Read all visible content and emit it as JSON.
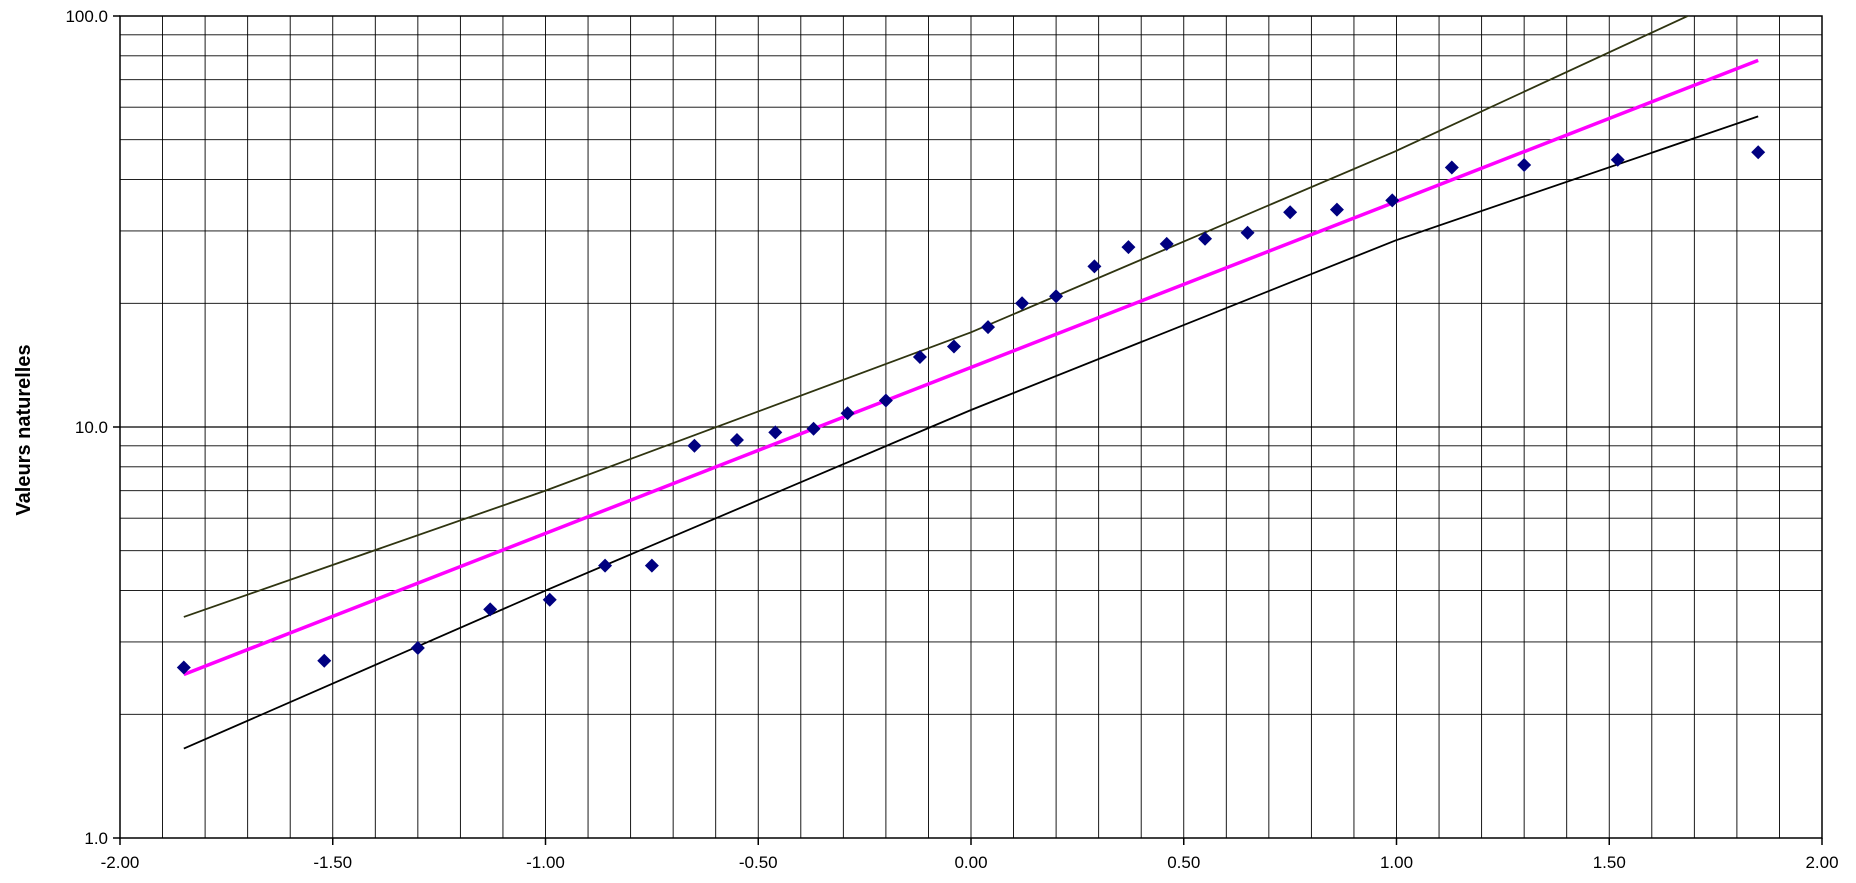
{
  "chart_data": {
    "type": "scatter",
    "title": "",
    "xlabel": "",
    "ylabel": "Valeurs naturelles",
    "xlim": [
      -2.0,
      2.0
    ],
    "ylim": [
      1.0,
      100.0
    ],
    "yscale": "log",
    "grid": true,
    "x_ticks": [
      "-2.00",
      "-1.50",
      "-1.00",
      "-0.50",
      "0.00",
      "0.50",
      "1.00",
      "1.50",
      "2.00"
    ],
    "x_tick_values": [
      -2.0,
      -1.5,
      -1.0,
      -0.5,
      0.0,
      0.5,
      1.0,
      1.5,
      2.0
    ],
    "y_ticks": [
      "1.0",
      "10.0",
      "100.0"
    ],
    "y_tick_values": [
      1.0,
      10.0,
      100.0
    ],
    "series": [
      {
        "kind": "points",
        "color": "#000080",
        "marker": "diamond",
        "x": [
          -1.85,
          -1.52,
          -1.3,
          -1.13,
          -0.99,
          -0.86,
          -0.75,
          -0.65,
          -0.55,
          -0.46,
          -0.37,
          -0.29,
          -0.2,
          -0.12,
          -0.04,
          0.04,
          0.12,
          0.2,
          0.29,
          0.37,
          0.46,
          0.55,
          0.65,
          0.75,
          0.86,
          0.99,
          1.13,
          1.3,
          1.52,
          1.85
        ],
        "y": [
          2.6,
          2.7,
          2.9,
          3.6,
          3.8,
          4.6,
          4.6,
          9.0,
          9.3,
          9.7,
          9.9,
          10.8,
          11.6,
          14.8,
          15.7,
          17.5,
          20.0,
          20.8,
          24.6,
          27.4,
          27.9,
          28.7,
          29.7,
          33.3,
          33.8,
          35.6,
          42.8,
          43.4,
          44.7,
          46.6
        ]
      },
      {
        "kind": "line",
        "color": "#ff00ff",
        "width": 3.5,
        "x": [
          -1.85,
          1.85
        ],
        "y": [
          2.5,
          78.0
        ]
      },
      {
        "kind": "line",
        "color": "#2f3410",
        "width": 1.8,
        "x": [
          -1.85,
          -1.0,
          0.0,
          1.0,
          1.72
        ],
        "y": [
          3.45,
          7.0,
          17.0,
          47.0,
          104.0
        ]
      },
      {
        "kind": "line",
        "color": "#000000",
        "width": 1.8,
        "x": [
          -1.85,
          -1.0,
          0.0,
          1.0,
          1.85
        ],
        "y": [
          1.65,
          4.0,
          11.0,
          28.5,
          57.0
        ]
      }
    ]
  }
}
